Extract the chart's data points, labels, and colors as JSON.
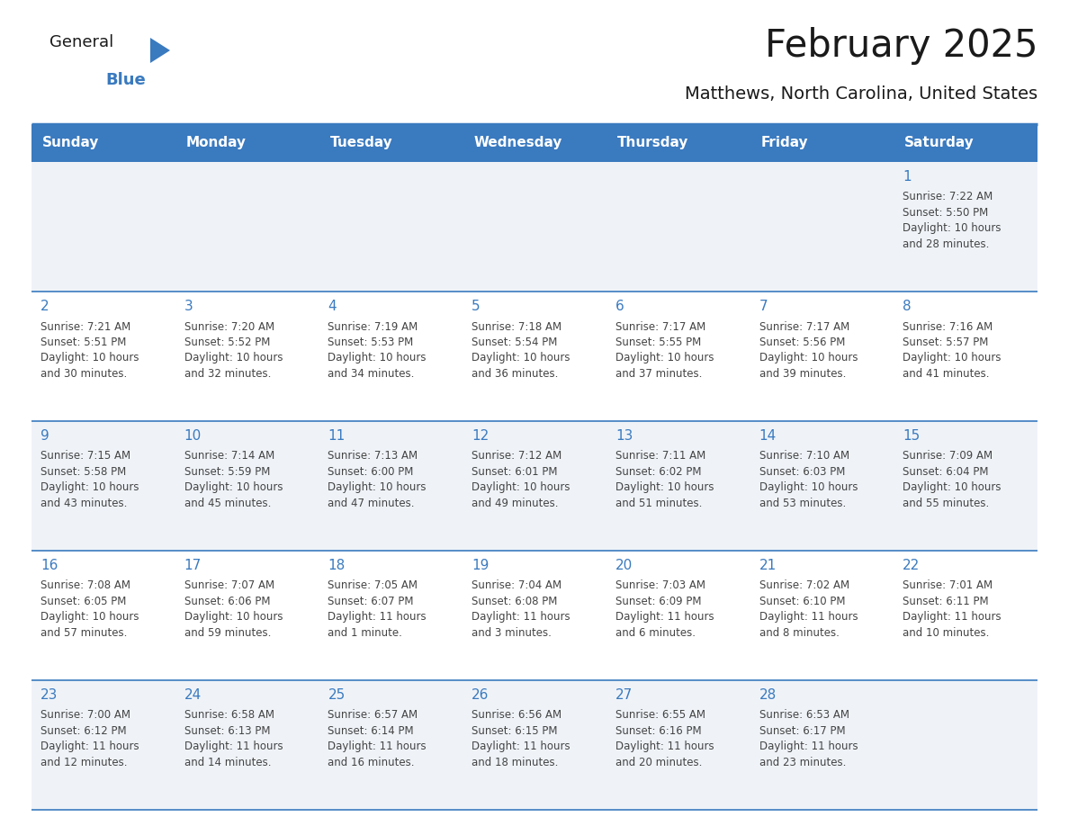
{
  "title": "February 2025",
  "subtitle": "Matthews, North Carolina, United States",
  "header_bg": "#3a7abf",
  "header_text_color": "#ffffff",
  "cell_bg_light": "#eff3f8",
  "cell_bg_white": "#ffffff",
  "day_number_color": "#3a7abf",
  "text_color": "#444444",
  "line_color": "#3a7abf",
  "days_of_week": [
    "Sunday",
    "Monday",
    "Tuesday",
    "Wednesday",
    "Thursday",
    "Friday",
    "Saturday"
  ],
  "weeks": [
    [
      {
        "day": null,
        "sunrise": null,
        "sunset": null,
        "daylight": null
      },
      {
        "day": null,
        "sunrise": null,
        "sunset": null,
        "daylight": null
      },
      {
        "day": null,
        "sunrise": null,
        "sunset": null,
        "daylight": null
      },
      {
        "day": null,
        "sunrise": null,
        "sunset": null,
        "daylight": null
      },
      {
        "day": null,
        "sunrise": null,
        "sunset": null,
        "daylight": null
      },
      {
        "day": null,
        "sunrise": null,
        "sunset": null,
        "daylight": null
      },
      {
        "day": 1,
        "sunrise": "7:22 AM",
        "sunset": "5:50 PM",
        "daylight": "10 hours\nand 28 minutes."
      }
    ],
    [
      {
        "day": 2,
        "sunrise": "7:21 AM",
        "sunset": "5:51 PM",
        "daylight": "10 hours\nand 30 minutes."
      },
      {
        "day": 3,
        "sunrise": "7:20 AM",
        "sunset": "5:52 PM",
        "daylight": "10 hours\nand 32 minutes."
      },
      {
        "day": 4,
        "sunrise": "7:19 AM",
        "sunset": "5:53 PM",
        "daylight": "10 hours\nand 34 minutes."
      },
      {
        "day": 5,
        "sunrise": "7:18 AM",
        "sunset": "5:54 PM",
        "daylight": "10 hours\nand 36 minutes."
      },
      {
        "day": 6,
        "sunrise": "7:17 AM",
        "sunset": "5:55 PM",
        "daylight": "10 hours\nand 37 minutes."
      },
      {
        "day": 7,
        "sunrise": "7:17 AM",
        "sunset": "5:56 PM",
        "daylight": "10 hours\nand 39 minutes."
      },
      {
        "day": 8,
        "sunrise": "7:16 AM",
        "sunset": "5:57 PM",
        "daylight": "10 hours\nand 41 minutes."
      }
    ],
    [
      {
        "day": 9,
        "sunrise": "7:15 AM",
        "sunset": "5:58 PM",
        "daylight": "10 hours\nand 43 minutes."
      },
      {
        "day": 10,
        "sunrise": "7:14 AM",
        "sunset": "5:59 PM",
        "daylight": "10 hours\nand 45 minutes."
      },
      {
        "day": 11,
        "sunrise": "7:13 AM",
        "sunset": "6:00 PM",
        "daylight": "10 hours\nand 47 minutes."
      },
      {
        "day": 12,
        "sunrise": "7:12 AM",
        "sunset": "6:01 PM",
        "daylight": "10 hours\nand 49 minutes."
      },
      {
        "day": 13,
        "sunrise": "7:11 AM",
        "sunset": "6:02 PM",
        "daylight": "10 hours\nand 51 minutes."
      },
      {
        "day": 14,
        "sunrise": "7:10 AM",
        "sunset": "6:03 PM",
        "daylight": "10 hours\nand 53 minutes."
      },
      {
        "day": 15,
        "sunrise": "7:09 AM",
        "sunset": "6:04 PM",
        "daylight": "10 hours\nand 55 minutes."
      }
    ],
    [
      {
        "day": 16,
        "sunrise": "7:08 AM",
        "sunset": "6:05 PM",
        "daylight": "10 hours\nand 57 minutes."
      },
      {
        "day": 17,
        "sunrise": "7:07 AM",
        "sunset": "6:06 PM",
        "daylight": "10 hours\nand 59 minutes."
      },
      {
        "day": 18,
        "sunrise": "7:05 AM",
        "sunset": "6:07 PM",
        "daylight": "11 hours\nand 1 minute."
      },
      {
        "day": 19,
        "sunrise": "7:04 AM",
        "sunset": "6:08 PM",
        "daylight": "11 hours\nand 3 minutes."
      },
      {
        "day": 20,
        "sunrise": "7:03 AM",
        "sunset": "6:09 PM",
        "daylight": "11 hours\nand 6 minutes."
      },
      {
        "day": 21,
        "sunrise": "7:02 AM",
        "sunset": "6:10 PM",
        "daylight": "11 hours\nand 8 minutes."
      },
      {
        "day": 22,
        "sunrise": "7:01 AM",
        "sunset": "6:11 PM",
        "daylight": "11 hours\nand 10 minutes."
      }
    ],
    [
      {
        "day": 23,
        "sunrise": "7:00 AM",
        "sunset": "6:12 PM",
        "daylight": "11 hours\nand 12 minutes."
      },
      {
        "day": 24,
        "sunrise": "6:58 AM",
        "sunset": "6:13 PM",
        "daylight": "11 hours\nand 14 minutes."
      },
      {
        "day": 25,
        "sunrise": "6:57 AM",
        "sunset": "6:14 PM",
        "daylight": "11 hours\nand 16 minutes."
      },
      {
        "day": 26,
        "sunrise": "6:56 AM",
        "sunset": "6:15 PM",
        "daylight": "11 hours\nand 18 minutes."
      },
      {
        "day": 27,
        "sunrise": "6:55 AM",
        "sunset": "6:16 PM",
        "daylight": "11 hours\nand 20 minutes."
      },
      {
        "day": 28,
        "sunrise": "6:53 AM",
        "sunset": "6:17 PM",
        "daylight": "11 hours\nand 23 minutes."
      },
      {
        "day": null,
        "sunrise": null,
        "sunset": null,
        "daylight": null
      }
    ]
  ]
}
